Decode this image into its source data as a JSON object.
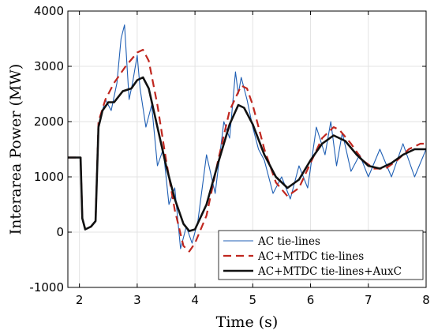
{
  "chart_data": {
    "type": "line",
    "title": "",
    "xlabel": "Time (s)",
    "ylabel": "Interarea Power (MW)",
    "xlim": [
      1.8,
      8
    ],
    "ylim": [
      -1000,
      4000
    ],
    "xticks": [
      2,
      3,
      4,
      5,
      6,
      7,
      8
    ],
    "yticks": [
      -1000,
      0,
      1000,
      2000,
      3000,
      4000
    ],
    "xtick_labels": [
      "2",
      "3",
      "4",
      "5",
      "6",
      "7",
      "8"
    ],
    "ytick_labels": [
      "-1000",
      "0",
      "1000",
      "2000",
      "3000",
      "4000"
    ],
    "grid": true,
    "legend_position": "bottom-right",
    "series": [
      {
        "name": "AC tie-lines",
        "color": "#1f5fb4",
        "style": "solid",
        "x": [
          1.8,
          2.0,
          2.02,
          2.05,
          2.1,
          2.2,
          2.28,
          2.33,
          2.4,
          2.45,
          2.55,
          2.65,
          2.72,
          2.78,
          2.86,
          2.92,
          3.0,
          3.05,
          3.15,
          3.25,
          3.35,
          3.45,
          3.55,
          3.65,
          3.75,
          3.85,
          3.95,
          4.05,
          4.2,
          4.35,
          4.5,
          4.6,
          4.7,
          4.75,
          4.8,
          4.9,
          5.0,
          5.1,
          5.2,
          5.35,
          5.5,
          5.65,
          5.8,
          5.95,
          6.1,
          6.25,
          6.35,
          6.45,
          6.55,
          6.7,
          6.85,
          7.0,
          7.2,
          7.4,
          7.6,
          7.8,
          8.0
        ],
        "y": [
          1350,
          1350,
          1350,
          250,
          50,
          100,
          200,
          1900,
          2200,
          2400,
          2200,
          2700,
          3500,
          3750,
          2400,
          2700,
          3200,
          2600,
          1900,
          2300,
          1200,
          1500,
          500,
          800,
          -300,
          100,
          -200,
          200,
          1400,
          700,
          2000,
          1700,
          2900,
          2500,
          2800,
          2400,
          1900,
          1500,
          1300,
          700,
          1000,
          600,
          1200,
          800,
          1900,
          1400,
          2000,
          1200,
          1800,
          1100,
          1400,
          1000,
          1500,
          1000,
          1600,
          1000,
          1500
        ]
      },
      {
        "name": "AC+MTDC tie-lines",
        "color": "#c0271f",
        "style": "dashed",
        "x": [
          1.8,
          2.0,
          2.02,
          2.05,
          2.1,
          2.2,
          2.28,
          2.33,
          2.45,
          2.6,
          2.8,
          3.0,
          3.1,
          3.2,
          3.35,
          3.5,
          3.65,
          3.8,
          3.9,
          4.0,
          4.2,
          4.4,
          4.6,
          4.8,
          4.9,
          5.0,
          5.2,
          5.4,
          5.6,
          5.8,
          6.0,
          6.2,
          6.4,
          6.5,
          6.7,
          6.9,
          7.1,
          7.3,
          7.5,
          7.7,
          7.9,
          8.0
        ],
        "y": [
          1350,
          1350,
          1350,
          250,
          50,
          100,
          200,
          2000,
          2400,
          2700,
          3000,
          3250,
          3300,
          3100,
          2300,
          1300,
          400,
          -250,
          -350,
          -200,
          300,
          1300,
          2200,
          2650,
          2600,
          2300,
          1500,
          900,
          650,
          800,
          1250,
          1700,
          1900,
          1850,
          1600,
          1300,
          1150,
          1150,
          1300,
          1500,
          1600,
          1600
        ]
      },
      {
        "name": "AC+MTDC tie-lines+AuxC",
        "color": "#111111",
        "style": "solid",
        "x": [
          1.8,
          2.0,
          2.02,
          2.05,
          2.1,
          2.2,
          2.28,
          2.33,
          2.4,
          2.5,
          2.6,
          2.75,
          2.9,
          3.0,
          3.1,
          3.2,
          3.35,
          3.5,
          3.65,
          3.8,
          3.9,
          4.0,
          4.2,
          4.4,
          4.6,
          4.75,
          4.85,
          5.0,
          5.2,
          5.4,
          5.6,
          5.8,
          6.0,
          6.2,
          6.4,
          6.6,
          6.8,
          7.0,
          7.2,
          7.4,
          7.6,
          7.8,
          8.0
        ],
        "y": [
          1350,
          1350,
          1350,
          250,
          50,
          100,
          200,
          1900,
          2200,
          2350,
          2350,
          2550,
          2600,
          2750,
          2800,
          2600,
          1900,
          1200,
          600,
          150,
          20,
          50,
          500,
          1250,
          1950,
          2300,
          2250,
          1950,
          1400,
          1000,
          800,
          950,
          1300,
          1600,
          1750,
          1650,
          1400,
          1200,
          1150,
          1250,
          1400,
          1500,
          1500
        ]
      }
    ]
  }
}
